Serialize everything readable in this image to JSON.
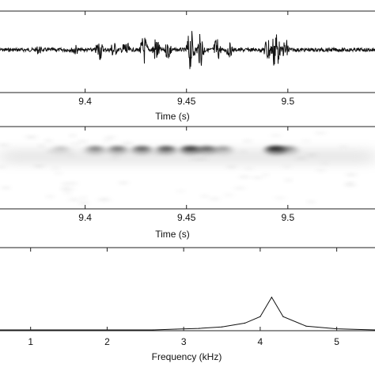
{
  "colors": {
    "ink": "#111111",
    "frame": "#222222",
    "background": "#ffffff"
  },
  "chart_data": [
    {
      "id": "waveform",
      "type": "line",
      "title": "",
      "xlabel": "Time (s)",
      "ylabel": "",
      "xlim": [
        9.358,
        9.543
      ],
      "ylim": [
        -1,
        1
      ],
      "xticks": [
        9.4,
        9.45,
        9.5
      ],
      "tick_labels": [
        "9.4",
        "9.45",
        "9.5"
      ],
      "grid": false,
      "bursts": [
        {
          "t": 9.377,
          "amp": 0.18
        },
        {
          "t": 9.395,
          "amp": 0.22
        },
        {
          "t": 9.407,
          "amp": 0.45
        },
        {
          "t": 9.414,
          "amp": 0.35
        },
        {
          "t": 9.42,
          "amp": 0.4
        },
        {
          "t": 9.429,
          "amp": 0.6
        },
        {
          "t": 9.435,
          "amp": 0.55
        },
        {
          "t": 9.441,
          "amp": 0.4
        },
        {
          "t": 9.452,
          "amp": 0.85
        },
        {
          "t": 9.457,
          "amp": 0.65
        },
        {
          "t": 9.465,
          "amp": 0.5
        },
        {
          "t": 9.471,
          "amp": 0.3
        },
        {
          "t": 9.49,
          "amp": 0.55
        },
        {
          "t": 9.494,
          "amp": 0.95
        },
        {
          "t": 9.499,
          "amp": 0.45
        }
      ]
    },
    {
      "id": "spectrogram",
      "type": "heatmap",
      "title": "",
      "xlabel": "Time (s)",
      "ylabel": "",
      "xlim": [
        9.358,
        9.543
      ],
      "xticks": [
        9.4,
        9.45,
        9.5
      ],
      "tick_labels": [
        "9.4",
        "9.45",
        "9.5"
      ],
      "grid": false,
      "blobs": [
        {
          "t": 9.388,
          "intensity": 0.15
        },
        {
          "t": 9.405,
          "intensity": 0.4
        },
        {
          "t": 9.416,
          "intensity": 0.45
        },
        {
          "t": 9.428,
          "intensity": 0.55
        },
        {
          "t": 9.44,
          "intensity": 0.6
        },
        {
          "t": 9.452,
          "intensity": 0.75
        },
        {
          "t": 9.46,
          "intensity": 0.55
        },
        {
          "t": 9.468,
          "intensity": 0.3
        },
        {
          "t": 9.494,
          "intensity": 0.9
        },
        {
          "t": 9.5,
          "intensity": 0.35
        }
      ]
    },
    {
      "id": "spectrum",
      "type": "line",
      "title": "",
      "xlabel": "Frequency (kHz)",
      "ylabel": "",
      "xlim": [
        0.6,
        5.5
      ],
      "ylim": [
        0,
        1
      ],
      "xticks": [
        1,
        2,
        3,
        4,
        5
      ],
      "tick_labels": [
        "1",
        "2",
        "3",
        "4",
        "5"
      ],
      "grid": false,
      "x": [
        2.6,
        2.9,
        3.2,
        3.5,
        3.8,
        4.0,
        4.15,
        4.3,
        4.6,
        5.0,
        5.5
      ],
      "y": [
        0.0,
        0.02,
        0.04,
        0.08,
        0.18,
        0.35,
        0.86,
        0.35,
        0.1,
        0.03,
        0.0
      ]
    }
  ]
}
